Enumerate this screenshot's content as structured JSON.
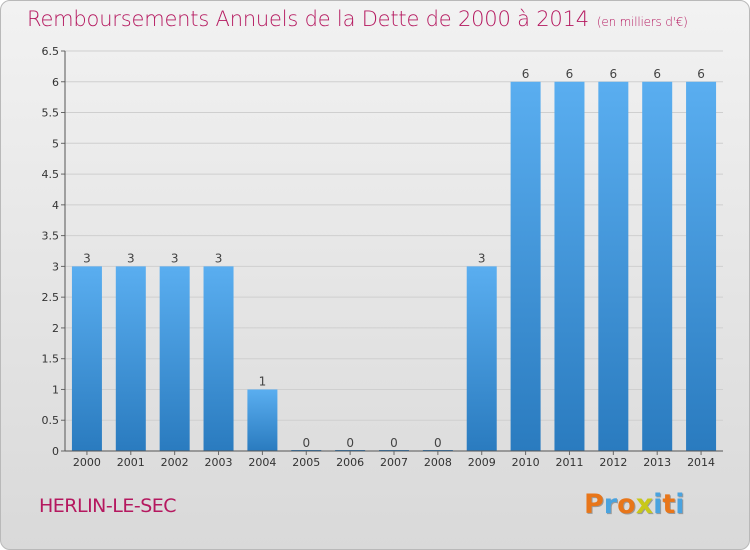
{
  "title": "Remboursements Annuels de la Dette de 2000 à 2014",
  "title_unit": "(en milliers d'€)",
  "commune": "HERLIN-LE-SEC",
  "logo": {
    "letters": [
      "P",
      "r",
      "o",
      "x",
      "i",
      "t",
      "i"
    ],
    "colors": [
      "#e8761a",
      "#4aa3df",
      "#e8761a",
      "#c8c81a",
      "#4aa3df",
      "#e8761a",
      "#4aa3df"
    ]
  },
  "colors": {
    "bar_top": "#5aaef0",
    "bar_bottom": "#2a7bbf",
    "title": "#b5185f"
  },
  "chart_data": {
    "type": "bar",
    "title": "Remboursements Annuels de la Dette de 2000 à 2014",
    "xlabel": "",
    "ylabel": "",
    "ylim": [
      0,
      6.5
    ],
    "yticks": [
      "0",
      "0.5",
      "1",
      "1.5",
      "2",
      "2.5",
      "3",
      "3.5",
      "4",
      "4.5",
      "5",
      "5.5",
      "6",
      "6.5"
    ],
    "categories": [
      "2000",
      "2001",
      "2002",
      "2003",
      "2004",
      "2005",
      "2006",
      "2007",
      "2008",
      "2009",
      "2010",
      "2011",
      "2012",
      "2013",
      "2014"
    ],
    "values": [
      3,
      3,
      3,
      3,
      1,
      0,
      0,
      0,
      0,
      3,
      6,
      6,
      6,
      6,
      6
    ],
    "labels": [
      "3",
      "3",
      "3",
      "3",
      "1",
      "0",
      "0",
      "0",
      "0",
      "3",
      "6",
      "6",
      "6",
      "6",
      "6"
    ]
  }
}
